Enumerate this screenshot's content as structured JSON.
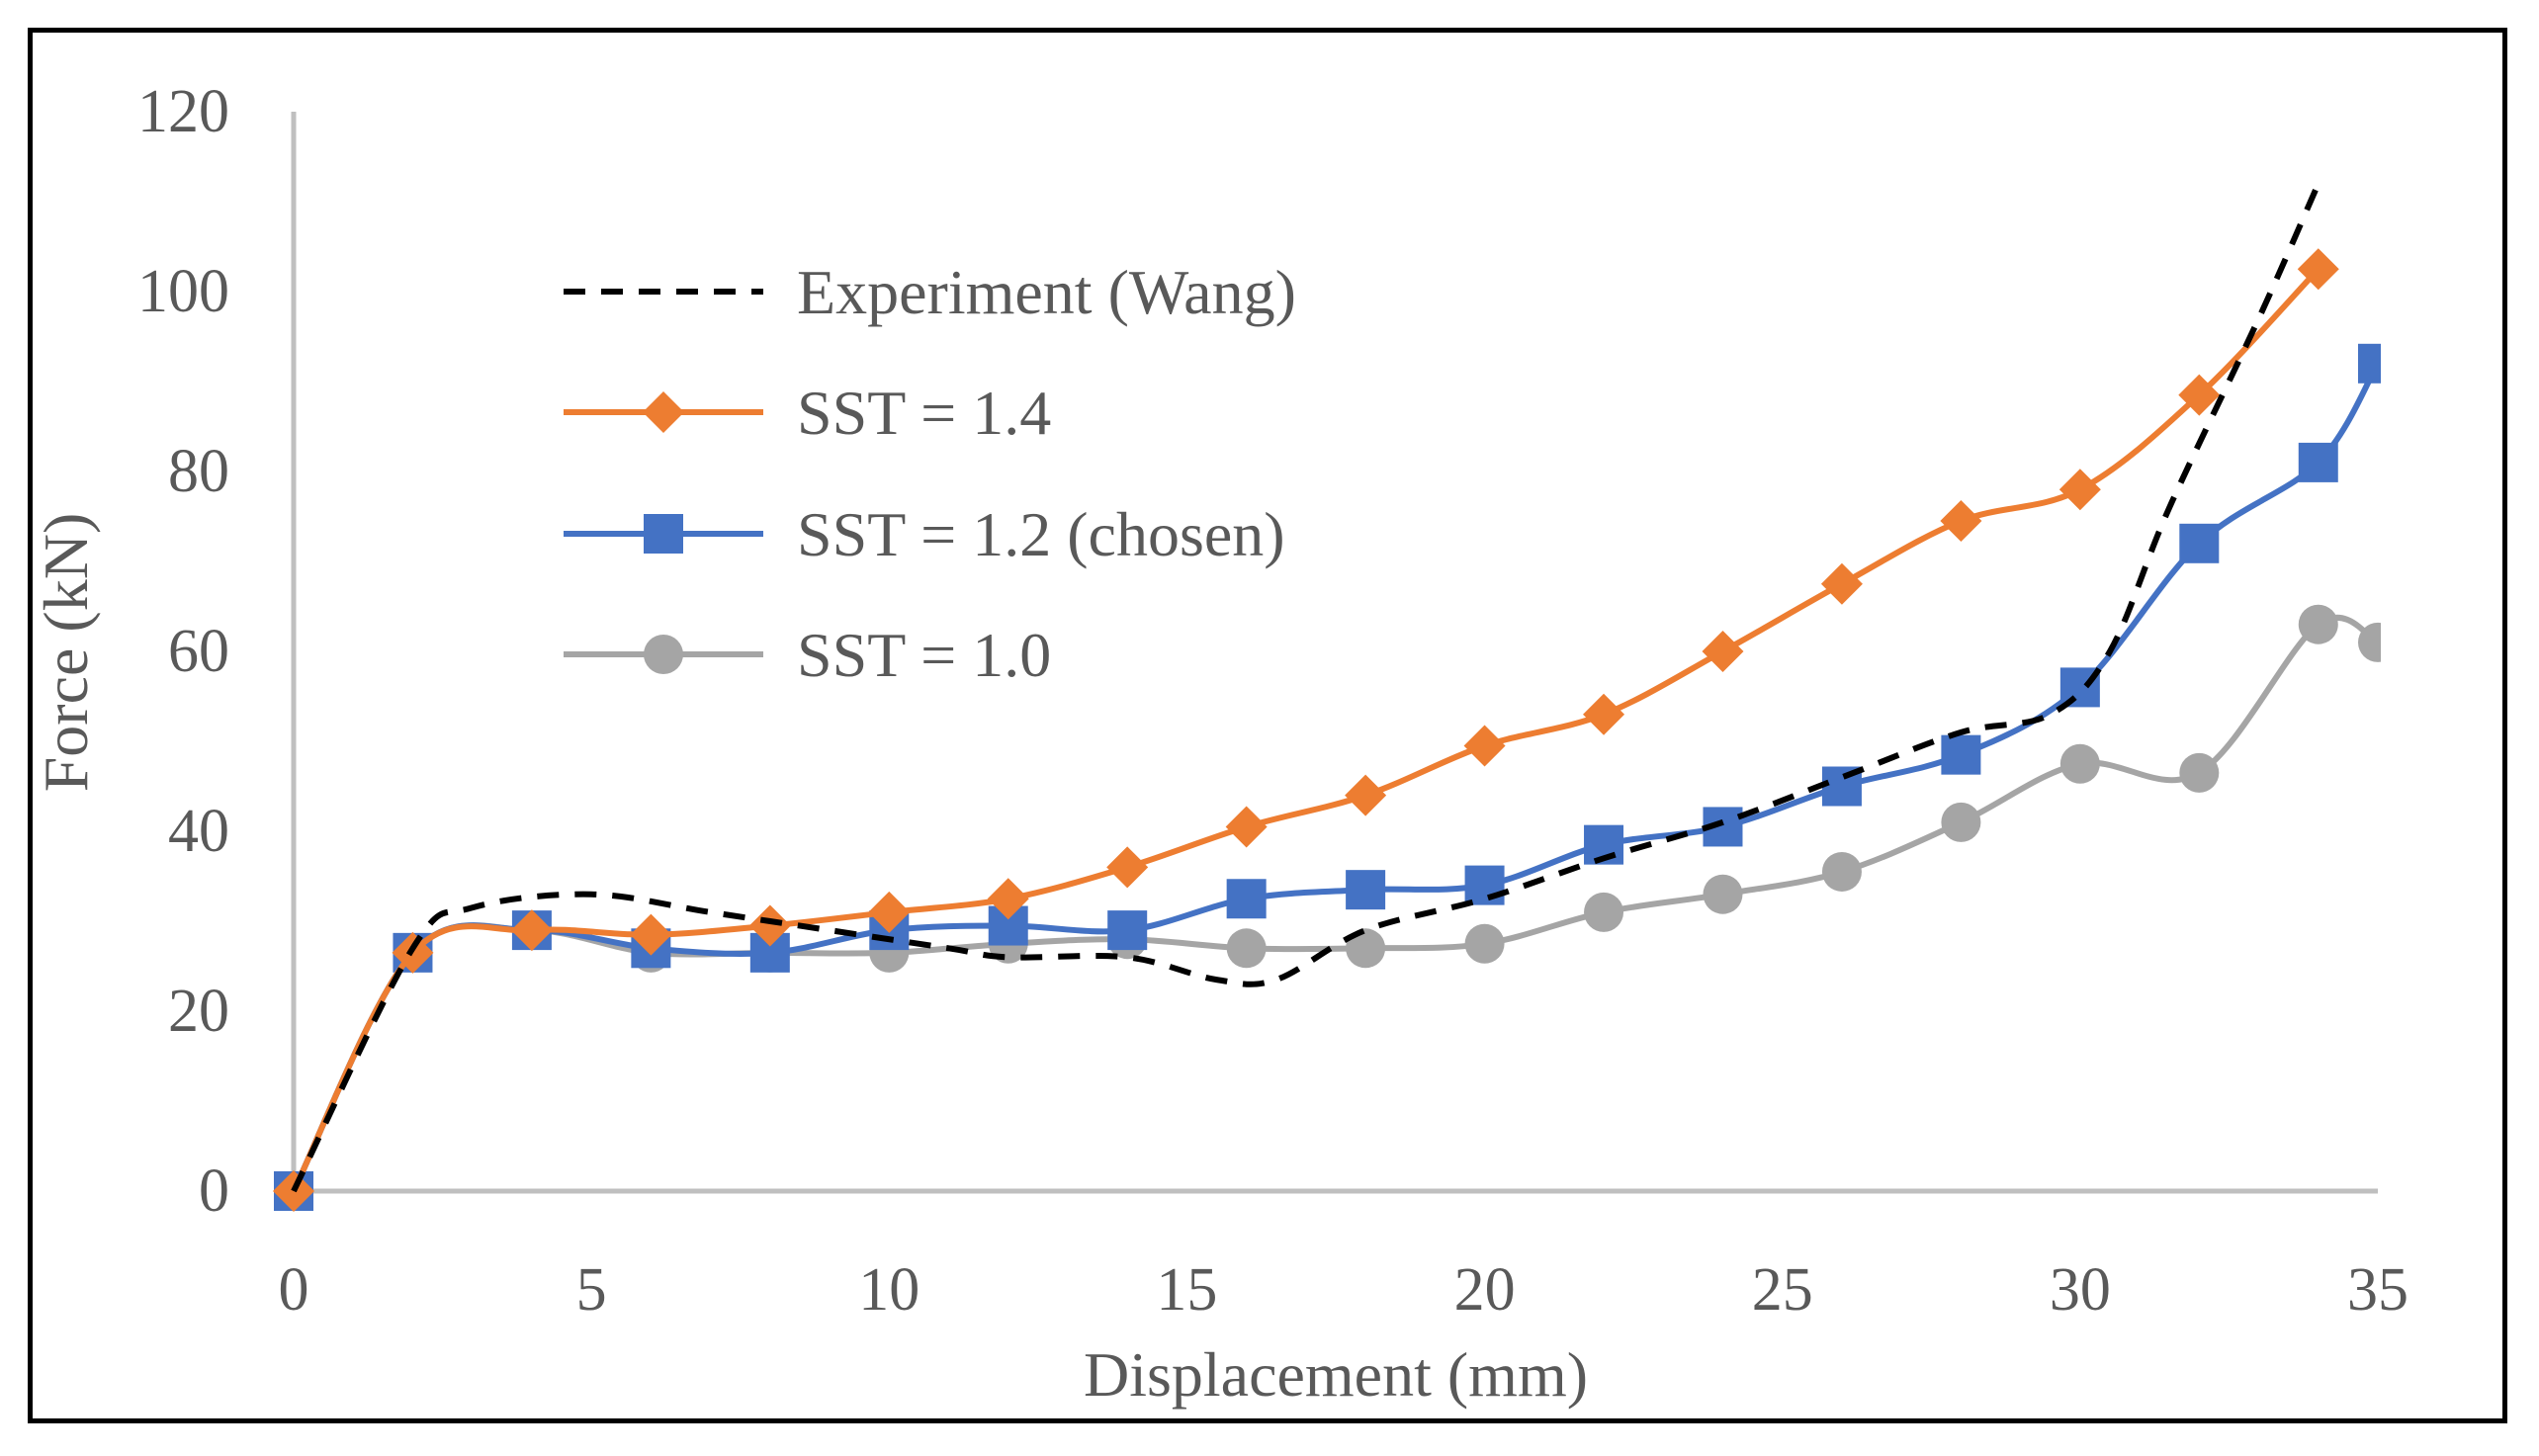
{
  "chart_data": {
    "type": "line",
    "title": "",
    "xlabel": "Displacement (mm)",
    "ylabel": "Force (kN)",
    "xlim": [
      0,
      35
    ],
    "ylim": [
      0,
      120
    ],
    "xticks": [
      0,
      5,
      10,
      15,
      20,
      25,
      30,
      35
    ],
    "yticks": [
      0,
      20,
      40,
      60,
      80,
      100,
      120
    ],
    "grid": false,
    "legend_position": "top-left",
    "colors": {
      "experiment": "#000000",
      "sst14": "#ED7D31",
      "sst12": "#4472C4",
      "sst10": "#A5A5A5",
      "axis": "#BFBFBF"
    },
    "series": [
      {
        "name": "Experiment (Wang)",
        "style": "dashed",
        "marker": "none",
        "x": [
          0,
          2,
          3,
          5,
          7,
          9,
          11,
          12,
          14,
          15.5,
          16.5,
          18,
          20,
          22,
          24,
          26,
          28,
          29.5,
          30.5,
          31.5,
          33,
          34
        ],
        "y": [
          0,
          27,
          31.5,
          33,
          31,
          29,
          27,
          26,
          26,
          23.5,
          23.5,
          29,
          32.5,
          37,
          41,
          46,
          51,
          53,
          60,
          76,
          97,
          112
        ]
      },
      {
        "name": "SST = 1.4",
        "style": "solid",
        "marker": "diamond",
        "x": [
          0,
          2,
          4,
          6,
          8,
          10,
          12,
          14,
          16,
          18,
          20,
          22,
          24,
          26,
          28,
          30,
          32,
          34
        ],
        "y": [
          0,
          26.5,
          29,
          28.5,
          29.5,
          31,
          32.5,
          36,
          40.5,
          44,
          49.5,
          53,
          60,
          67.5,
          74.5,
          78,
          88.5,
          102.5
        ]
      },
      {
        "name": "SST = 1.2 (chosen)",
        "style": "solid",
        "marker": "square",
        "x": [
          0,
          2,
          4,
          6,
          8,
          10,
          12,
          14,
          16,
          18,
          20,
          22,
          24,
          26,
          28,
          30,
          32,
          34,
          35
        ],
        "y": [
          0,
          26.5,
          29,
          27,
          26.5,
          29,
          29.5,
          29,
          32.5,
          33.5,
          34,
          38.5,
          40.5,
          45,
          48.5,
          56,
          72,
          81,
          92
        ]
      },
      {
        "name": "SST = 1.0",
        "style": "solid",
        "marker": "circle",
        "x": [
          0,
          2,
          4,
          6,
          8,
          10,
          12,
          14,
          16,
          18,
          20,
          22,
          24,
          26,
          28,
          30,
          32,
          34,
          35
        ],
        "y": [
          0,
          26.5,
          29,
          26.5,
          26.5,
          26.5,
          27.5,
          28,
          27,
          27,
          27.5,
          31,
          33,
          35.5,
          41,
          47.5,
          46.5,
          63,
          61
        ]
      }
    ]
  }
}
